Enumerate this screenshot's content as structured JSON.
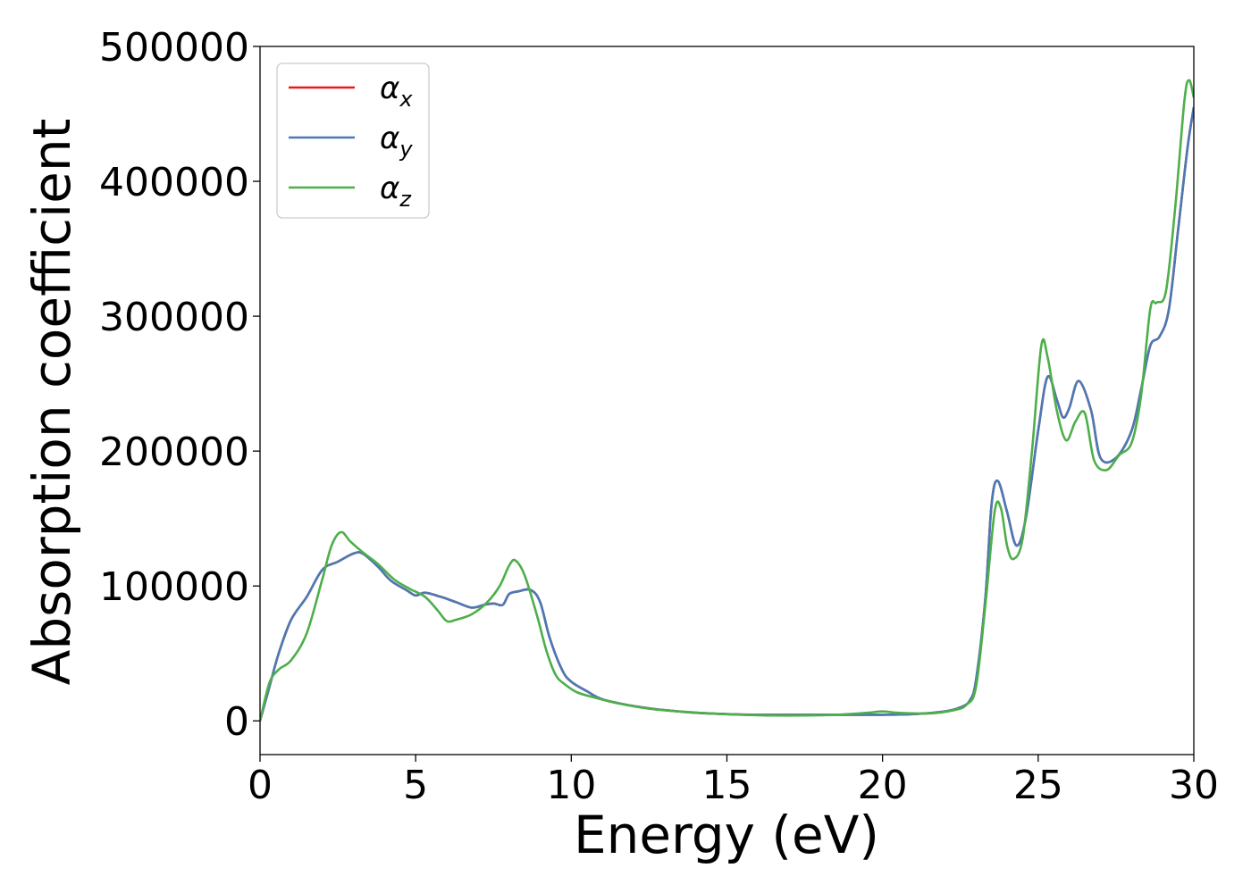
{
  "chart_data": {
    "type": "line",
    "xlabel": "Energy (eV)",
    "ylabel": "Absorption coefficient",
    "xlim": [
      0,
      30
    ],
    "ylim": [
      -25000,
      500000
    ],
    "xticks": [
      "0",
      "5",
      "10",
      "15",
      "20",
      "25",
      "30"
    ],
    "yticks": [
      "0",
      "100000",
      "200000",
      "300000",
      "400000",
      "500000"
    ],
    "grid": false,
    "legend_position": "top-left",
    "series": [
      {
        "name": "α_x",
        "legend_main": "α",
        "legend_sub": "x",
        "color": "#e41a1c",
        "x": [
          0,
          0.3,
          0.6,
          1.0,
          1.5,
          2.0,
          2.5,
          3.0,
          3.3,
          3.8,
          4.2,
          4.7,
          5.0,
          5.3,
          5.8,
          6.3,
          6.8,
          7.2,
          7.5,
          7.8,
          8.0,
          8.3,
          8.7,
          9.0,
          9.3,
          9.7,
          10.0,
          10.5,
          11.0,
          12.0,
          13.0,
          14.0,
          15.0,
          16.0,
          17.0,
          18.0,
          19.0,
          20.0,
          21.0,
          22.0,
          22.5,
          22.8,
          23.0,
          23.3,
          23.5,
          23.7,
          24.0,
          24.3,
          24.6,
          25.0,
          25.3,
          25.6,
          25.8,
          26.0,
          26.3,
          26.7,
          27.0,
          27.5,
          28.0,
          28.3,
          28.6,
          28.9,
          29.2,
          29.5,
          29.8,
          30.0
        ],
        "values": [
          0,
          25000,
          50000,
          75000,
          92000,
          112000,
          118000,
          124000,
          124000,
          114000,
          104000,
          97000,
          93000,
          95000,
          92000,
          88000,
          84000,
          86000,
          87000,
          86000,
          94000,
          96000,
          97000,
          88000,
          62000,
          38000,
          29000,
          22000,
          16000,
          11000,
          8000,
          6000,
          5000,
          4500,
          4500,
          4500,
          4500,
          4500,
          5000,
          7000,
          10000,
          15000,
          30000,
          90000,
          160000,
          178000,
          155000,
          130000,
          150000,
          215000,
          255000,
          238000,
          225000,
          232000,
          252000,
          230000,
          195000,
          195000,
          215000,
          245000,
          278000,
          285000,
          305000,
          365000,
          425000,
          455000
        ]
      },
      {
        "name": "α_y",
        "legend_main": "α",
        "legend_sub": "y",
        "color": "#4a7ab5",
        "x": [
          0,
          0.3,
          0.6,
          1.0,
          1.5,
          2.0,
          2.5,
          3.0,
          3.3,
          3.8,
          4.2,
          4.7,
          5.0,
          5.3,
          5.8,
          6.3,
          6.8,
          7.2,
          7.5,
          7.8,
          8.0,
          8.3,
          8.7,
          9.0,
          9.3,
          9.7,
          10.0,
          10.5,
          11.0,
          12.0,
          13.0,
          14.0,
          15.0,
          16.0,
          17.0,
          18.0,
          19.0,
          20.0,
          21.0,
          22.0,
          22.5,
          22.8,
          23.0,
          23.3,
          23.5,
          23.7,
          24.0,
          24.3,
          24.6,
          25.0,
          25.3,
          25.6,
          25.8,
          26.0,
          26.3,
          26.7,
          27.0,
          27.5,
          28.0,
          28.3,
          28.6,
          28.9,
          29.2,
          29.5,
          29.8,
          30.0
        ],
        "values": [
          0,
          25000,
          50000,
          75000,
          92000,
          112000,
          118000,
          124000,
          124000,
          114000,
          104000,
          97000,
          93000,
          95000,
          92000,
          88000,
          84000,
          86000,
          87000,
          86000,
          94000,
          96000,
          97000,
          88000,
          62000,
          38000,
          29000,
          22000,
          16000,
          11000,
          8000,
          6000,
          5000,
          4500,
          4500,
          4500,
          4500,
          4500,
          5000,
          7000,
          10000,
          15000,
          30000,
          90000,
          160000,
          178000,
          155000,
          130000,
          150000,
          215000,
          255000,
          238000,
          225000,
          232000,
          252000,
          230000,
          195000,
          195000,
          215000,
          245000,
          278000,
          285000,
          305000,
          365000,
          425000,
          455000
        ]
      },
      {
        "name": "α_z",
        "legend_main": "α",
        "legend_sub": "z",
        "color": "#4daf4a",
        "x": [
          0,
          0.3,
          0.6,
          1.0,
          1.5,
          2.0,
          2.3,
          2.6,
          2.9,
          3.3,
          3.8,
          4.3,
          4.8,
          5.3,
          5.7,
          6.0,
          6.3,
          6.8,
          7.3,
          7.7,
          8.0,
          8.2,
          8.5,
          8.9,
          9.2,
          9.5,
          9.8,
          10.2,
          10.8,
          11.5,
          12.5,
          13.5,
          14.5,
          15.5,
          16.5,
          17.5,
          18.5,
          19.5,
          20.0,
          20.5,
          21.5,
          22.3,
          22.7,
          23.0,
          23.3,
          23.6,
          23.8,
          24.0,
          24.2,
          24.5,
          24.8,
          25.1,
          25.3,
          25.6,
          25.9,
          26.2,
          26.5,
          26.8,
          27.2,
          27.6,
          28.0,
          28.3,
          28.6,
          28.8,
          29.1,
          29.4,
          29.7,
          29.85,
          30.0
        ],
        "values": [
          0,
          28000,
          38000,
          45000,
          65000,
          105000,
          130000,
          140000,
          133000,
          125000,
          116000,
          105000,
          98000,
          92000,
          82000,
          74000,
          75000,
          79000,
          88000,
          100000,
          115000,
          119000,
          108000,
          78000,
          52000,
          34000,
          27000,
          21000,
          17000,
          13000,
          9000,
          7000,
          5500,
          4500,
          4000,
          4000,
          4500,
          6000,
          7000,
          6000,
          5500,
          8000,
          12000,
          25000,
          85000,
          155000,
          158000,
          130000,
          120000,
          135000,
          200000,
          278000,
          270000,
          230000,
          208000,
          222000,
          228000,
          193000,
          186000,
          197000,
          206000,
          240000,
          305000,
          310000,
          318000,
          380000,
          460000,
          475000,
          462000
        ]
      }
    ]
  }
}
